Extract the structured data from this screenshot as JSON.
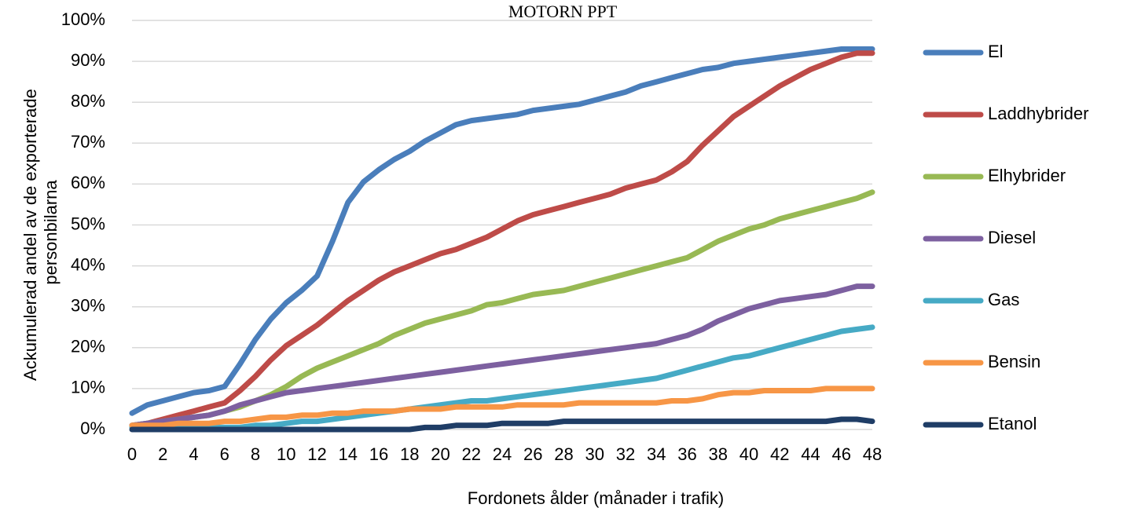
{
  "chart_data": {
    "type": "line",
    "title": "MOTORN PPT",
    "xlabel": "Fordonets ålder (månader i trafik)",
    "ylabel_lines": [
      "Ackumulerad andel av de exporterade",
      "personbilarna"
    ],
    "ylim": [
      0,
      100
    ],
    "xlim": [
      0,
      48
    ],
    "x_ticks": [
      0,
      2,
      4,
      6,
      8,
      10,
      12,
      14,
      16,
      18,
      20,
      22,
      24,
      26,
      28,
      30,
      32,
      34,
      36,
      38,
      40,
      42,
      44,
      46,
      48
    ],
    "y_ticks": [
      "0%",
      "10%",
      "20%",
      "30%",
      "40%",
      "50%",
      "60%",
      "70%",
      "80%",
      "90%",
      "100%"
    ],
    "grid": true,
    "legend_position": "right",
    "x": [
      0,
      1,
      2,
      3,
      4,
      5,
      6,
      7,
      8,
      9,
      10,
      11,
      12,
      13,
      14,
      15,
      16,
      17,
      18,
      19,
      20,
      21,
      22,
      23,
      24,
      25,
      26,
      27,
      28,
      29,
      30,
      31,
      32,
      33,
      34,
      35,
      36,
      37,
      38,
      39,
      40,
      41,
      42,
      43,
      44,
      45,
      46,
      47,
      48
    ],
    "series": [
      {
        "name": "El",
        "color": "#4a7ebb",
        "values": [
          4,
          6,
          7,
          8,
          9,
          9.5,
          10.5,
          16,
          22,
          27,
          31,
          34,
          37.5,
          46,
          55.5,
          60.5,
          63.5,
          66,
          68,
          70.5,
          72.5,
          74.5,
          75.5,
          76,
          76.5,
          77,
          78,
          78.5,
          79,
          79.5,
          80.5,
          81.5,
          82.5,
          84,
          85,
          86,
          87,
          88,
          88.5,
          89.5,
          90,
          90.5,
          91,
          91.5,
          92,
          92.5,
          93,
          93,
          93
        ]
      },
      {
        "name": "Laddhybrider",
        "color": "#be4b48",
        "values": [
          1,
          1.5,
          2.5,
          3.5,
          4.5,
          5.5,
          6.5,
          9.5,
          13,
          17,
          20.5,
          23,
          25.5,
          28.5,
          31.5,
          34,
          36.5,
          38.5,
          40,
          41.5,
          43,
          44,
          45.5,
          47,
          49,
          51,
          52.5,
          53.5,
          54.5,
          55.5,
          56.5,
          57.5,
          59,
          60,
          61,
          63,
          65.5,
          69.5,
          73,
          76.5,
          79,
          81.5,
          84,
          86,
          88,
          89.5,
          91,
          92,
          92
        ]
      },
      {
        "name": "Elhybrider",
        "color": "#98b954",
        "values": [
          1,
          1.5,
          2,
          2.5,
          3,
          3.5,
          4.5,
          5.5,
          7,
          8.5,
          10.5,
          13,
          15,
          16.5,
          18,
          19.5,
          21,
          23,
          24.5,
          26,
          27,
          28,
          29,
          30.5,
          31,
          32,
          33,
          33.5,
          34,
          35,
          36,
          37,
          38,
          39,
          40,
          41,
          42,
          44,
          46,
          47.5,
          49,
          50,
          51.5,
          52.5,
          53.5,
          54.5,
          55.5,
          56.5,
          58
        ]
      },
      {
        "name": "Diesel",
        "color": "#7d60a0",
        "values": [
          1,
          1.5,
          2,
          2.5,
          3,
          3.5,
          4.5,
          6,
          7,
          8,
          9,
          9.5,
          10,
          10.5,
          11,
          11.5,
          12,
          12.5,
          13,
          13.5,
          14,
          14.5,
          15,
          15.5,
          16,
          16.5,
          17,
          17.5,
          18,
          18.5,
          19,
          19.5,
          20,
          20.5,
          21,
          22,
          23,
          24.5,
          26.5,
          28,
          29.5,
          30.5,
          31.5,
          32,
          32.5,
          33,
          34,
          35,
          35
        ]
      },
      {
        "name": "Gas",
        "color": "#46aac5",
        "values": [
          0.5,
          0.5,
          0.5,
          0.5,
          0.5,
          0.5,
          0.5,
          0.5,
          1,
          1,
          1.5,
          2,
          2,
          2.5,
          3,
          3.5,
          4,
          4.5,
          5,
          5.5,
          6,
          6.5,
          7,
          7,
          7.5,
          8,
          8.5,
          9,
          9.5,
          10,
          10.5,
          11,
          11.5,
          12,
          12.5,
          13.5,
          14.5,
          15.5,
          16.5,
          17.5,
          18,
          19,
          20,
          21,
          22,
          23,
          24,
          24.5,
          25
        ]
      },
      {
        "name": "Bensin",
        "color": "#f79646",
        "values": [
          1,
          1,
          1,
          1.5,
          1.5,
          1.5,
          2,
          2,
          2.5,
          3,
          3,
          3.5,
          3.5,
          4,
          4,
          4.5,
          4.5,
          4.5,
          5,
          5,
          5,
          5.5,
          5.5,
          5.5,
          5.5,
          6,
          6,
          6,
          6,
          6.5,
          6.5,
          6.5,
          6.5,
          6.5,
          6.5,
          7,
          7,
          7.5,
          8.5,
          9,
          9,
          9.5,
          9.5,
          9.5,
          9.5,
          10,
          10,
          10,
          10
        ]
      },
      {
        "name": "Etanol",
        "color": "#1f3d66",
        "values": [
          0,
          0,
          0,
          0,
          0,
          0,
          0,
          0,
          0,
          0,
          0,
          0,
          0,
          0,
          0,
          0,
          0,
          0,
          0,
          0.5,
          0.5,
          1,
          1,
          1,
          1.5,
          1.5,
          1.5,
          1.5,
          2,
          2,
          2,
          2,
          2,
          2,
          2,
          2,
          2,
          2,
          2,
          2,
          2,
          2,
          2,
          2,
          2,
          2,
          2.5,
          2.5,
          2
        ]
      }
    ]
  }
}
